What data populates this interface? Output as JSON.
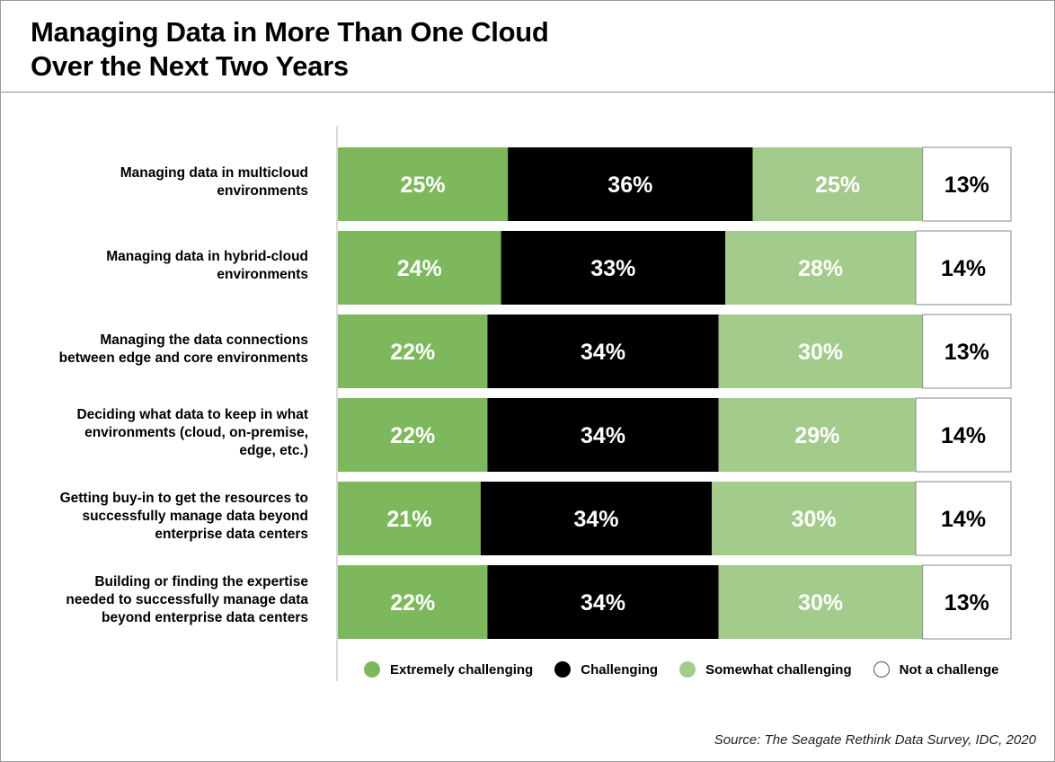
{
  "title": {
    "line1": "Managing Data in More Than One Cloud",
    "line2": "Over the Next Two Years"
  },
  "source": "Source: The Seagate Rethink Data Survey, IDC, 2020",
  "colors": {
    "extremely": "#7db95c",
    "challenging": "#000000",
    "somewhat": "#a3cb8b",
    "not": "#ffffff"
  },
  "chart_data": {
    "type": "bar",
    "orientation": "horizontal",
    "stacked": true,
    "title": "Managing Data in More Than One Cloud Over the Next Two Years",
    "categories": [
      "Managing data in multicloud\nenvironments",
      "Managing data in hybrid-cloud\nenvironments",
      "Managing the data connections\nbetween edge and core environments",
      "Deciding what data to keep in what\nenvironments (cloud, on-premise,\nedge, etc.)",
      "Getting buy-in to get the resources to\nsuccessfully manage data beyond\nenterprise data centers",
      "Building or finding the expertise\nneeded to successfully manage data\nbeyond enterprise data centers"
    ],
    "series": [
      {
        "name": "Extremely challenging",
        "values": [
          25,
          24,
          22,
          22,
          21,
          22
        ]
      },
      {
        "name": "Challenging",
        "values": [
          36,
          33,
          34,
          34,
          34,
          34
        ]
      },
      {
        "name": "Somewhat challenging",
        "values": [
          25,
          28,
          30,
          29,
          30,
          30
        ]
      },
      {
        "name": "Not a challenge",
        "values": [
          13,
          14,
          13,
          14,
          14,
          13
        ]
      }
    ],
    "unit": "%",
    "legend_position": "bottom"
  }
}
